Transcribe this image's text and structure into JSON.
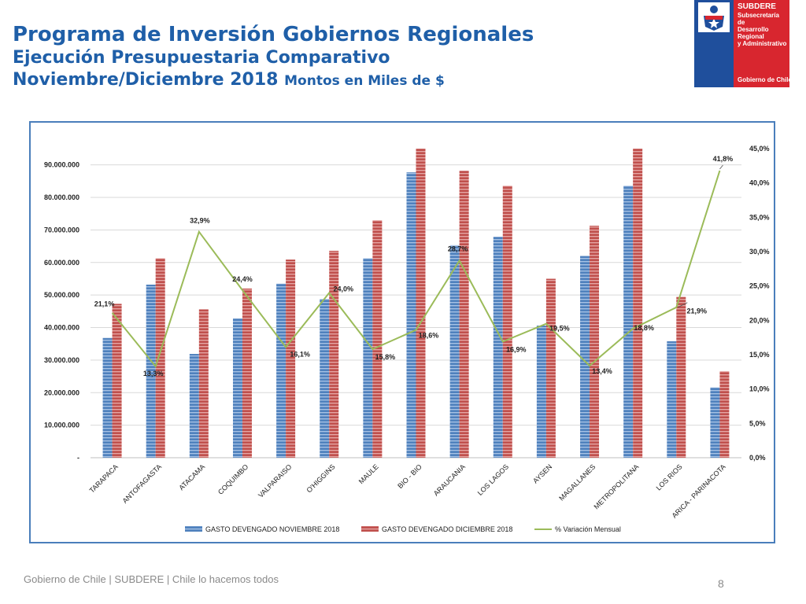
{
  "header": {
    "title": "Programa de Inversión Gobiernos Regionales",
    "subtitle": "Ejecución Presupuestaria Comparativo",
    "period": "Noviembre/Diciembre 2018",
    "units": "Montos en Miles de $"
  },
  "logo": {
    "name": "SUBDERE",
    "line1": "Subsecretaría de",
    "line2": "Desarrollo Regional",
    "line3": "y Administrativo",
    "government": "Gobierno de Chile",
    "brand_blue": "#1f4f9c",
    "brand_red": "#d8262f"
  },
  "chart_data": {
    "type": "bar",
    "title": "",
    "categories": [
      "TARAPACA",
      "ANTOFAGASTA",
      "ATACAMA",
      "COQUIMBO",
      "VALPARAISO",
      "O'HIGGINS",
      "MAULE",
      "BIO - BIO",
      "ARAUCANIA",
      "LOS LAGOS",
      "AYSEN",
      "MAGALLANES",
      "METROPOLITANA",
      "LOS RIOS",
      "ARICA - PARINACOTA"
    ],
    "series": [
      {
        "name": "GASTO DEVENGADO NOVIEMBRE 2018",
        "kind": "bar",
        "axis": "left",
        "color": "#4f81bd",
        "values": [
          36800000,
          53200000,
          31900000,
          42800000,
          53500000,
          48800000,
          61300000,
          87700000,
          65300000,
          67900000,
          40600000,
          62000000,
          83600000,
          35800000,
          21600000
        ]
      },
      {
        "name": "GASTO DEVENGADO DICIEMBRE 2018",
        "kind": "bar",
        "axis": "left",
        "color": "#c0504d",
        "values": [
          47300000,
          61300000,
          45600000,
          52000000,
          60900000,
          63600000,
          73000000,
          95000000,
          88200000,
          83600000,
          55000000,
          71300000,
          95000000,
          49400000,
          26600000
        ]
      },
      {
        "name": "% Variación Mensual",
        "kind": "line",
        "axis": "right",
        "color": "#9bbb59",
        "values": [
          21.1,
          13.3,
          32.9,
          24.4,
          16.1,
          24.0,
          15.8,
          18.6,
          28.7,
          16.9,
          19.5,
          13.4,
          18.8,
          21.9,
          41.8
        ],
        "labels": [
          "21,1%",
          "13,3%",
          "32,9%",
          "24,4%",
          "16,1%",
          "24,0%",
          "15,8%",
          "18,6%",
          "28,7%",
          "16,9%",
          "19,5%",
          "13,4%",
          "18,8%",
          "21,9%",
          "41,8%"
        ]
      }
    ],
    "ylim": [
      0,
      95000000
    ],
    "y_ticks": [
      0,
      10000000,
      20000000,
      30000000,
      40000000,
      50000000,
      60000000,
      70000000,
      80000000,
      90000000
    ],
    "y_tick_labels": [
      "-",
      "10.000.000",
      "20.000.000",
      "30.000.000",
      "40.000.000",
      "50.000.000",
      "60.000.000",
      "70.000.000",
      "80.000.000",
      "90.000.000"
    ],
    "y2lim": [
      0,
      45
    ],
    "y2_ticks": [
      0,
      5,
      10,
      15,
      20,
      25,
      30,
      35,
      40,
      45
    ],
    "y2_tick_labels": [
      "0,0%",
      "5,0%",
      "10,0%",
      "15,0%",
      "20,0%",
      "25,0%",
      "30,0%",
      "35,0%",
      "40,0%",
      "45,0%"
    ],
    "grid": true,
    "legend": "bottom"
  },
  "footer": {
    "text": "Gobierno de Chile | SUBDERE | Chile lo hacemos todos",
    "page": "8"
  }
}
